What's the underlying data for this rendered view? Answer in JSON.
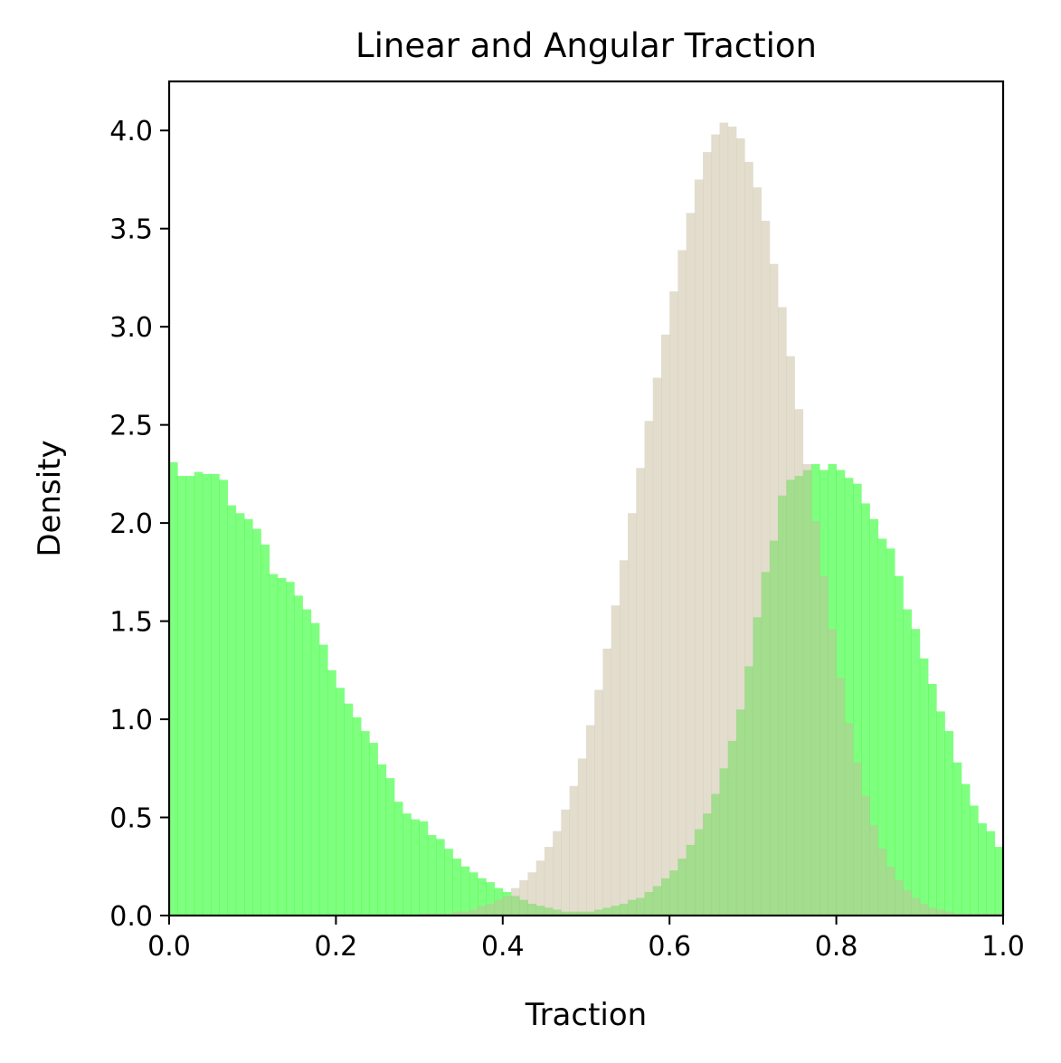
{
  "chart_data": {
    "type": "histogram",
    "title": "Linear and Angular Traction",
    "xlabel": "Traction",
    "ylabel": "Density",
    "xlim": [
      0.0,
      1.0
    ],
    "ylim": [
      0.0,
      4.25
    ],
    "grid": false,
    "xticks": [
      "0.0",
      "0.2",
      "0.4",
      "0.6",
      "0.8",
      "1.0"
    ],
    "yticks": [
      "0.0",
      "0.5",
      "1.0",
      "1.5",
      "2.0",
      "2.5",
      "3.0",
      "3.5",
      "4.0"
    ],
    "bin_width": 0.01,
    "series": [
      {
        "color": "#00ff00",
        "opacity": 0.5,
        "x_start": 0.0,
        "values": [
          2.31,
          2.24,
          2.24,
          2.26,
          2.25,
          2.25,
          2.22,
          2.09,
          2.05,
          2.02,
          1.97,
          1.89,
          1.74,
          1.72,
          1.7,
          1.63,
          1.56,
          1.49,
          1.38,
          1.25,
          1.16,
          1.08,
          1.01,
          0.94,
          0.88,
          0.77,
          0.7,
          0.58,
          0.52,
          0.49,
          0.48,
          0.41,
          0.39,
          0.34,
          0.29,
          0.25,
          0.22,
          0.19,
          0.17,
          0.14,
          0.12,
          0.1,
          0.08,
          0.06,
          0.05,
          0.04,
          0.03,
          0.02,
          0.02,
          0.02,
          0.02,
          0.03,
          0.04,
          0.05,
          0.06,
          0.08,
          0.09,
          0.12,
          0.15,
          0.19,
          0.23,
          0.29,
          0.36,
          0.44,
          0.52,
          0.62,
          0.75,
          0.89,
          1.05,
          1.27,
          1.52,
          1.75,
          1.91,
          2.14,
          2.22,
          2.24,
          2.27,
          2.3,
          2.27,
          2.3,
          2.27,
          2.23,
          2.2,
          2.1,
          2.02,
          1.92,
          1.87,
          1.73,
          1.56,
          1.46,
          1.31,
          1.18,
          1.04,
          0.94,
          0.78,
          0.67,
          0.56,
          0.47,
          0.43,
          0.35
        ]
      },
      {
        "color": "#c8bc9e",
        "opacity": 0.5,
        "x_start": 0.3,
        "values": [
          0.01,
          0.01,
          0.01,
          0.01,
          0.02,
          0.02,
          0.03,
          0.05,
          0.06,
          0.08,
          0.1,
          0.14,
          0.18,
          0.22,
          0.28,
          0.35,
          0.43,
          0.54,
          0.66,
          0.8,
          0.97,
          1.15,
          1.36,
          1.58,
          1.81,
          2.05,
          2.28,
          2.52,
          2.74,
          2.96,
          3.18,
          3.39,
          3.58,
          3.75,
          3.89,
          3.98,
          4.04,
          4.02,
          3.96,
          3.84,
          3.71,
          3.54,
          3.32,
          3.1,
          2.85,
          2.58,
          2.3,
          2.01,
          1.73,
          1.46,
          1.21,
          0.98,
          0.78,
          0.61,
          0.46,
          0.34,
          0.25,
          0.18,
          0.13,
          0.09,
          0.06,
          0.04,
          0.03,
          0.02,
          0.01,
          0.01,
          0.01,
          0.01,
          0.01,
          0.01
        ]
      }
    ]
  }
}
